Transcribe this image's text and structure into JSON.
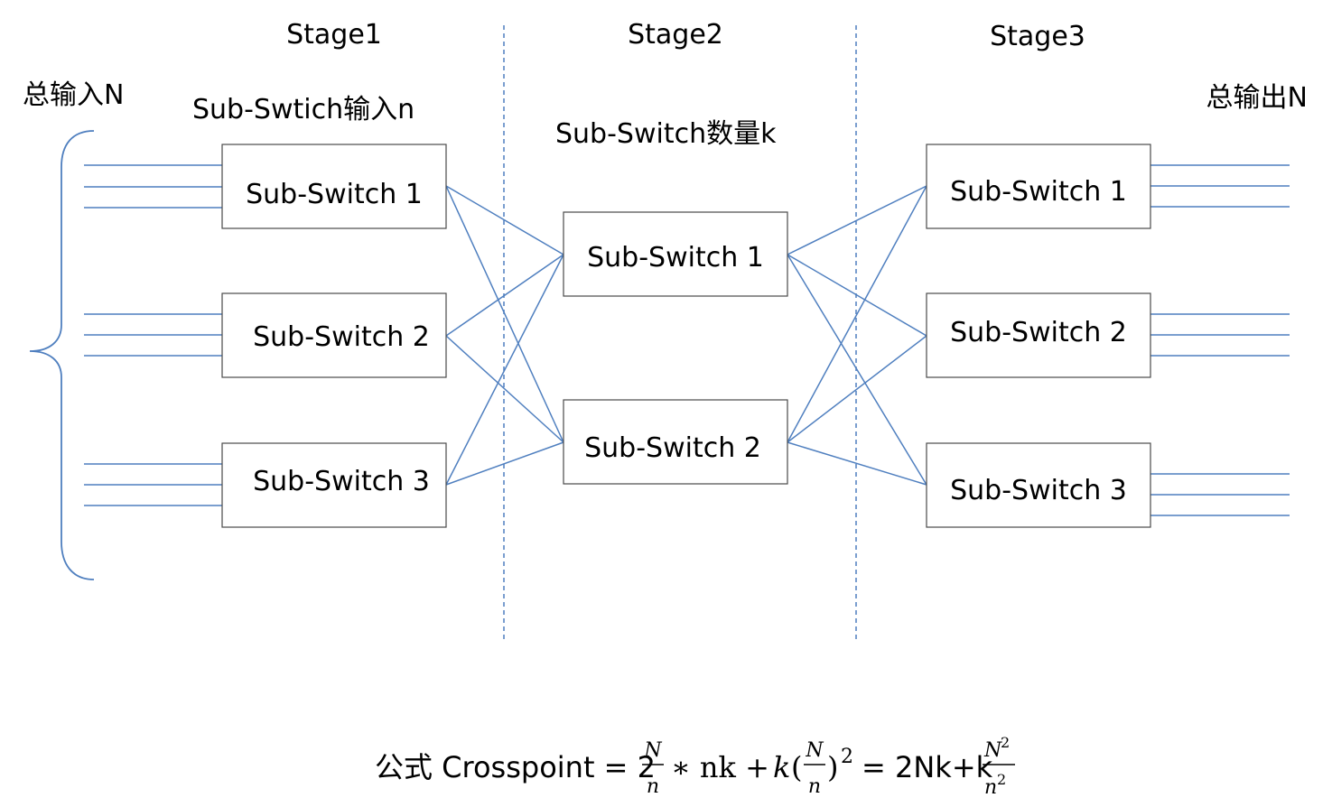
{
  "stages": [
    "Stage1",
    "Stage2",
    "Stage3"
  ],
  "labels": {
    "total_input": "总输入N",
    "total_output": "总输出N",
    "stage1_sub": "Sub-Swtich输入n",
    "stage2_sub": "Sub-Switch数量k"
  },
  "stage1_switches": [
    "Sub-Switch 1",
    "Sub-Switch 2",
    "Sub-Switch 3"
  ],
  "stage2_switches": [
    "Sub-Switch 1",
    "Sub-Switch 2"
  ],
  "stage3_switches": [
    "Sub-Switch 1",
    "Sub-Switch 2",
    "Sub-Switch 3"
  ],
  "formula": {
    "prefix": "公式 Crosspoint = 2",
    "frac_N": "N",
    "frac_n": "n",
    "times": "∗ nk +",
    "k": "k",
    "paren_open": "(",
    "paren_close": ")",
    "sup2": "2",
    "equals": "= 2Nk+k",
    "N2_base": "N",
    "n2_base": "n",
    "sup2b": "2",
    "sup2c": "2"
  },
  "colors": {
    "wire": "#4f7fbf",
    "box_border": "#4a4a4a"
  }
}
